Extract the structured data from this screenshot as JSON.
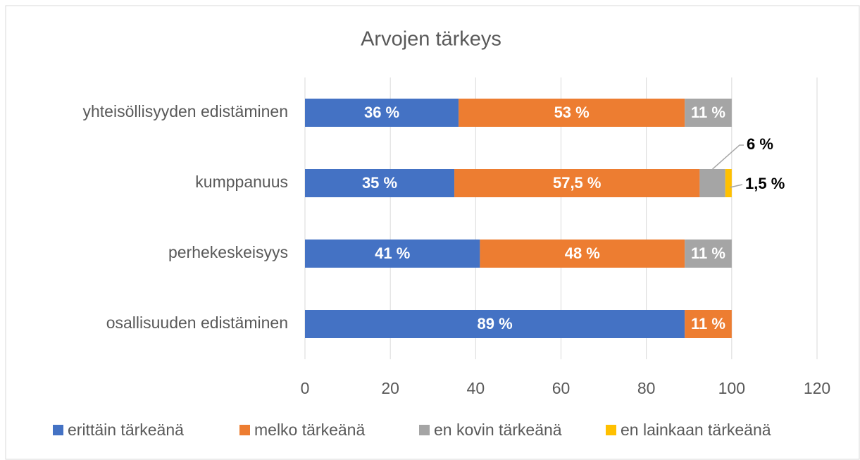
{
  "chart_data": {
    "type": "stacked_bar_horizontal",
    "title": "Arvojen tärkeys",
    "categories": [
      "yhteisöllisyyden edistäminen",
      "kumppanuus",
      "perhekeskeisyys",
      "osallisuuden edistäminen"
    ],
    "series": [
      {
        "name": "erittäin tärkeänä",
        "color": "#4472c4",
        "values": [
          36,
          35,
          41,
          89
        ],
        "value_labels": [
          "36 %",
          "35 %",
          "41 %",
          "89 %"
        ]
      },
      {
        "name": "melko tärkeänä",
        "color": "#ed7d31",
        "values": [
          53,
          57.5,
          48,
          11
        ],
        "value_labels": [
          "53 %",
          "57,5 %",
          "48 %",
          "11 %"
        ]
      },
      {
        "name": "en kovin tärkeänä",
        "color": "#a5a5a5",
        "values": [
          11,
          6,
          11,
          null
        ],
        "value_labels": [
          "11 %",
          "6 %",
          "11 %",
          null
        ]
      },
      {
        "name": "en lainkaan tärkeänä",
        "color": "#ffc000",
        "values": [
          null,
          1.5,
          null,
          null
        ],
        "value_labels": [
          null,
          "1,5 %",
          null,
          null
        ]
      }
    ],
    "xlim": [
      0,
      120
    ],
    "xticks": [
      0,
      20,
      40,
      60,
      80,
      100,
      120
    ],
    "grid": true,
    "legend": "bottom"
  }
}
